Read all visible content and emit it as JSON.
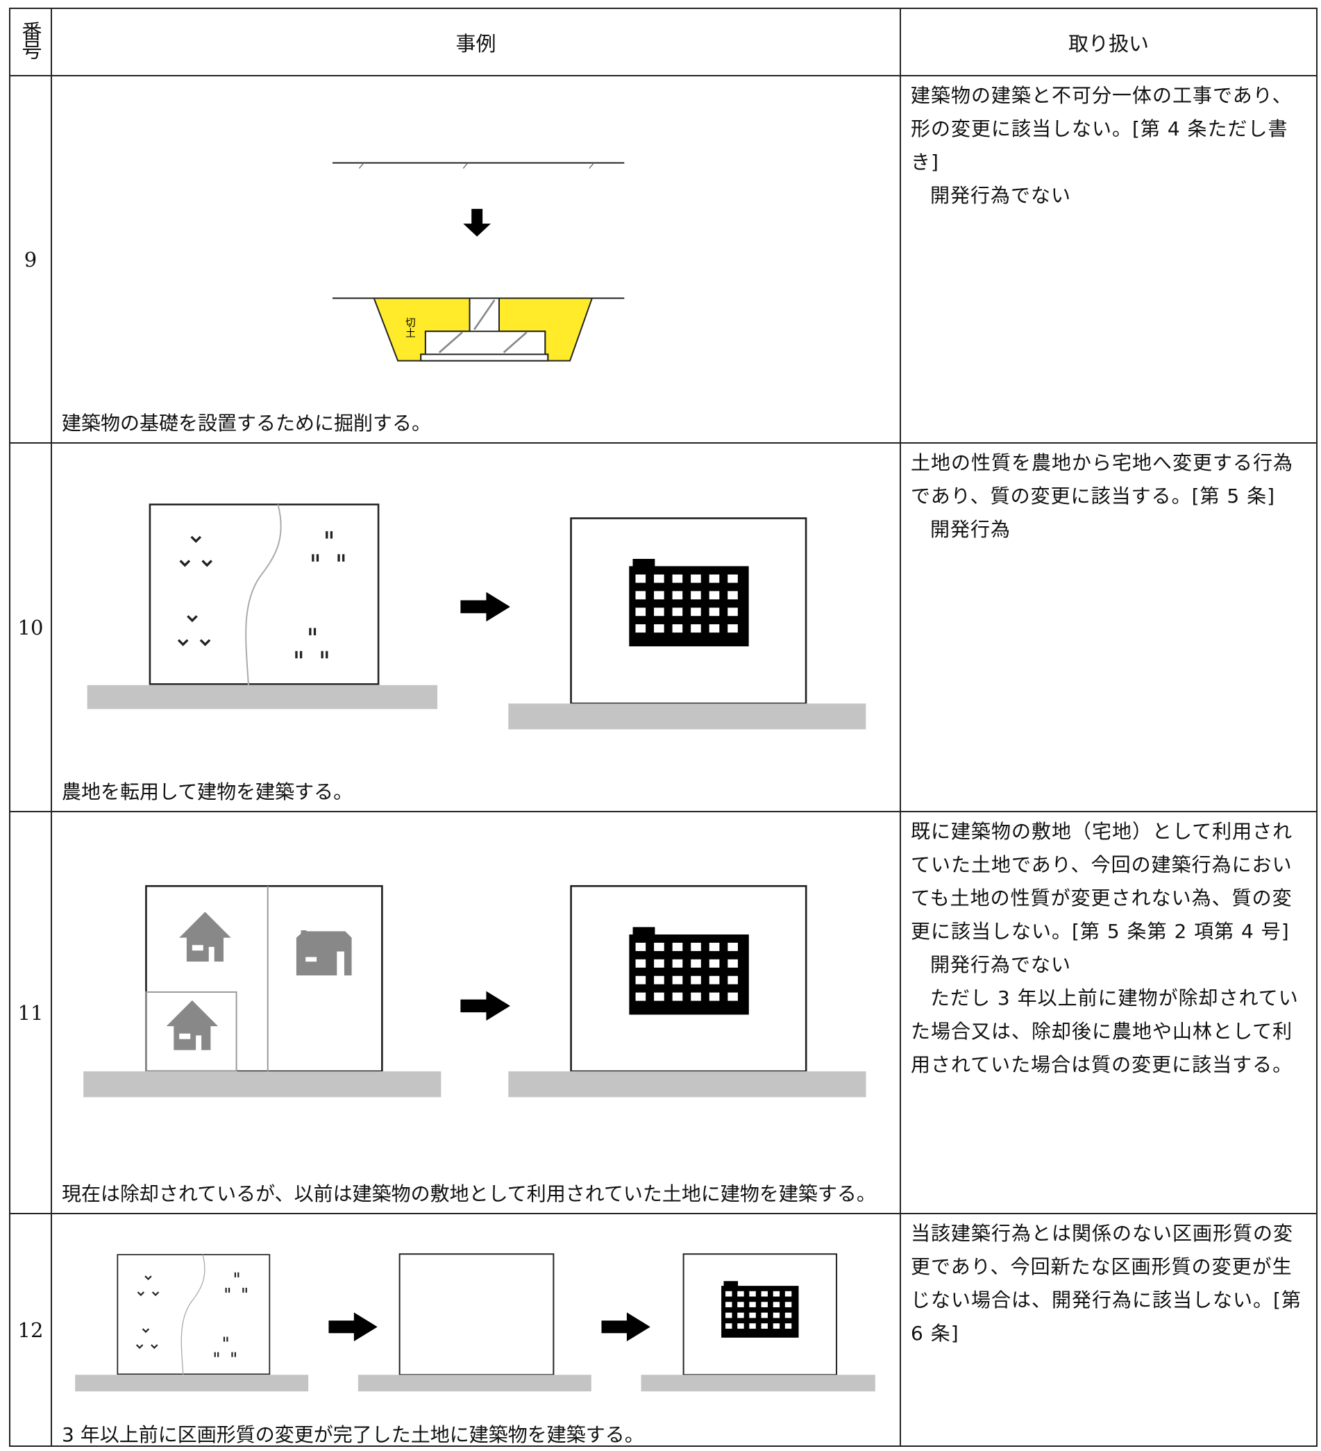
{
  "header": {
    "columns": [
      "番号",
      "事例",
      "取り扱い"
    ]
  },
  "rows": [
    {
      "number": "9",
      "caption": "建築物の基礎を設置するために掘削する。",
      "label": "切土",
      "handling": [
        "建築物の建築と不可分一体の工事であり、形の変更に該当しない。[第 4 条ただし書き]",
        "開発行為でない"
      ]
    },
    {
      "number": "10",
      "caption": "農地を転用して建物を建築する。",
      "handling": [
        "土地の性質を農地から宅地へ変更する行為であり、質の変更に該当する。[第 5 条]",
        "開発行為"
      ]
    },
    {
      "number": "11",
      "caption": "現在は除却されているが、以前は建築物の敷地として利用されていた土地に建物を建築する。",
      "handling": [
        "既に建築物の敷地（宅地）として利用されていた土地であり、今回の建築行為においても土地の性質が変更されない為、質の変更に該当しない。[第 5 条第 2 項第 4 号]",
        "開発行為でない",
        "ただし 3 年以上前に建物が除却されていた場合又は、除却後に農地や山林として利用されていた場合は質の変更に該当する。"
      ]
    },
    {
      "number": "12",
      "caption": "3 年以上前に区画形質の変更が完了した土地に建築物を建築する。",
      "handling": [
        "当該建築行為とは関係のない区画形質の変更であり、今回新たな区画形質の変更が生じない場合は、開発行為に該当しない。[第 6 条]"
      ]
    }
  ]
}
